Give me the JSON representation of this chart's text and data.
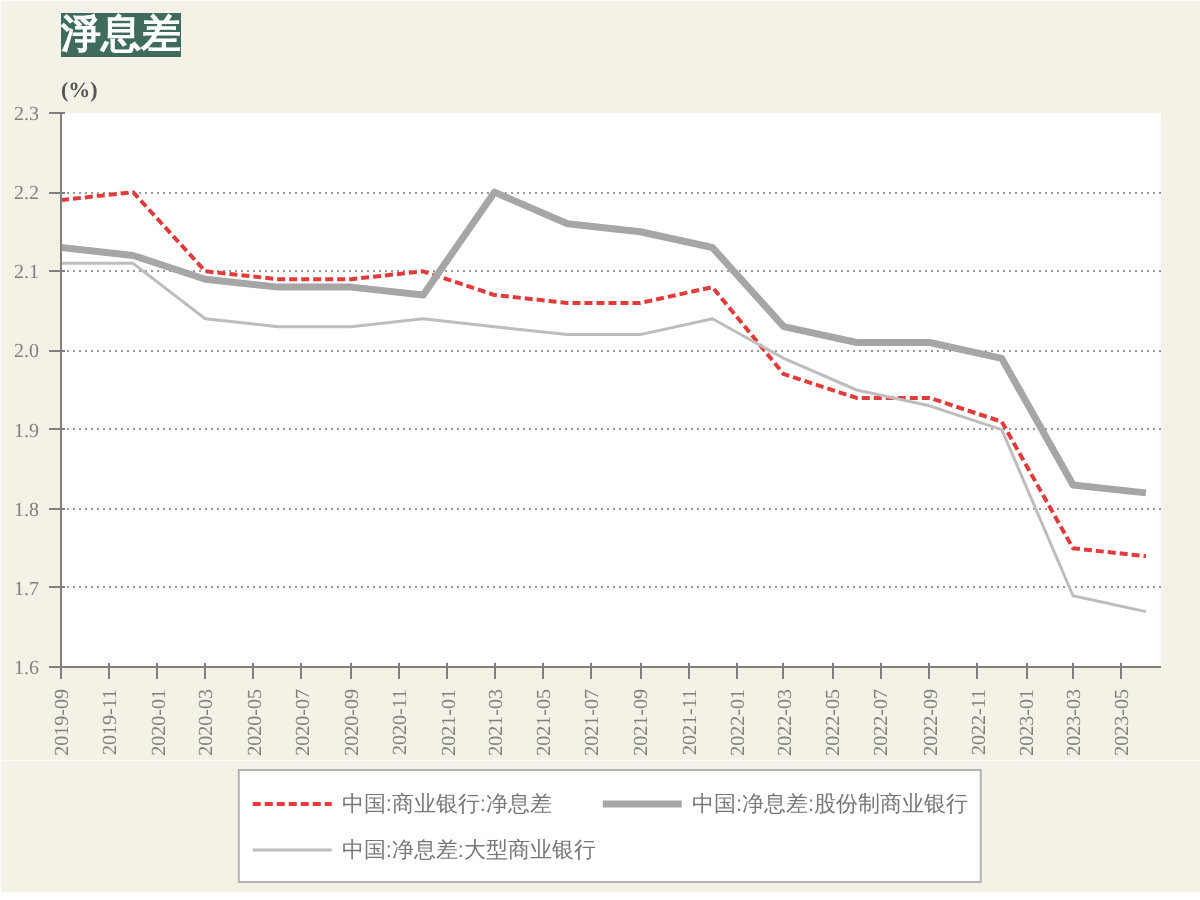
{
  "chart_data": {
    "type": "line",
    "title": "淨息差",
    "ylabel": "(%)",
    "x": [
      "2019-09",
      "2019-12",
      "2020-03",
      "2020-06",
      "2020-09",
      "2020-12",
      "2021-03",
      "2021-06",
      "2021-09",
      "2021-12",
      "2022-03",
      "2022-06",
      "2022-09",
      "2022-12",
      "2023-03",
      "2023-06"
    ],
    "series": [
      {
        "name": "中国:商业银行:净息差",
        "color": "#e03c3c",
        "line_style": "dashed",
        "values": [
          2.19,
          2.2,
          2.1,
          2.09,
          2.09,
          2.1,
          2.07,
          2.06,
          2.06,
          2.08,
          1.97,
          1.94,
          1.94,
          1.91,
          1.75,
          1.74
        ]
      },
      {
        "name": "中国:净息差:大型商业银行",
        "color": "#bdbdbd",
        "line_style": "solid",
        "values": [
          2.11,
          2.11,
          2.04,
          2.03,
          2.03,
          2.04,
          2.03,
          2.02,
          2.02,
          2.04,
          1.99,
          1.95,
          1.93,
          1.9,
          1.69,
          1.67
        ]
      },
      {
        "name": "中国:净息差:股份制商业银行",
        "color": "#a6a6a6",
        "line_style": "solid",
        "values": [
          2.13,
          2.12,
          2.09,
          2.08,
          2.08,
          2.07,
          2.2,
          2.16,
          2.15,
          2.13,
          2.03,
          2.01,
          2.01,
          1.99,
          1.83,
          1.82
        ]
      }
    ],
    "xlim": [
      "2019-09",
      "2023-06-20"
    ],
    "xticks": [
      "2019-09",
      "2019-11",
      "2020-01",
      "2020-03",
      "2020-05",
      "2020-07",
      "2020-09",
      "2020-11",
      "2021-01",
      "2021-03",
      "2021-05",
      "2021-07",
      "2021-09",
      "2021-11",
      "2022-01",
      "2022-03",
      "2022-05",
      "2022-07",
      "2022-09",
      "2022-11",
      "2023-01",
      "2023-03",
      "2023-05"
    ],
    "ylim": [
      1.6,
      2.3
    ],
    "yticks": [
      1.6,
      1.7,
      1.8,
      1.9,
      {
        "value": 2.0,
        "label": "2.0"
      },
      2.1,
      2.2,
      2.3
    ],
    "grid": "y",
    "legend": "bottom",
    "marker": "none"
  }
}
